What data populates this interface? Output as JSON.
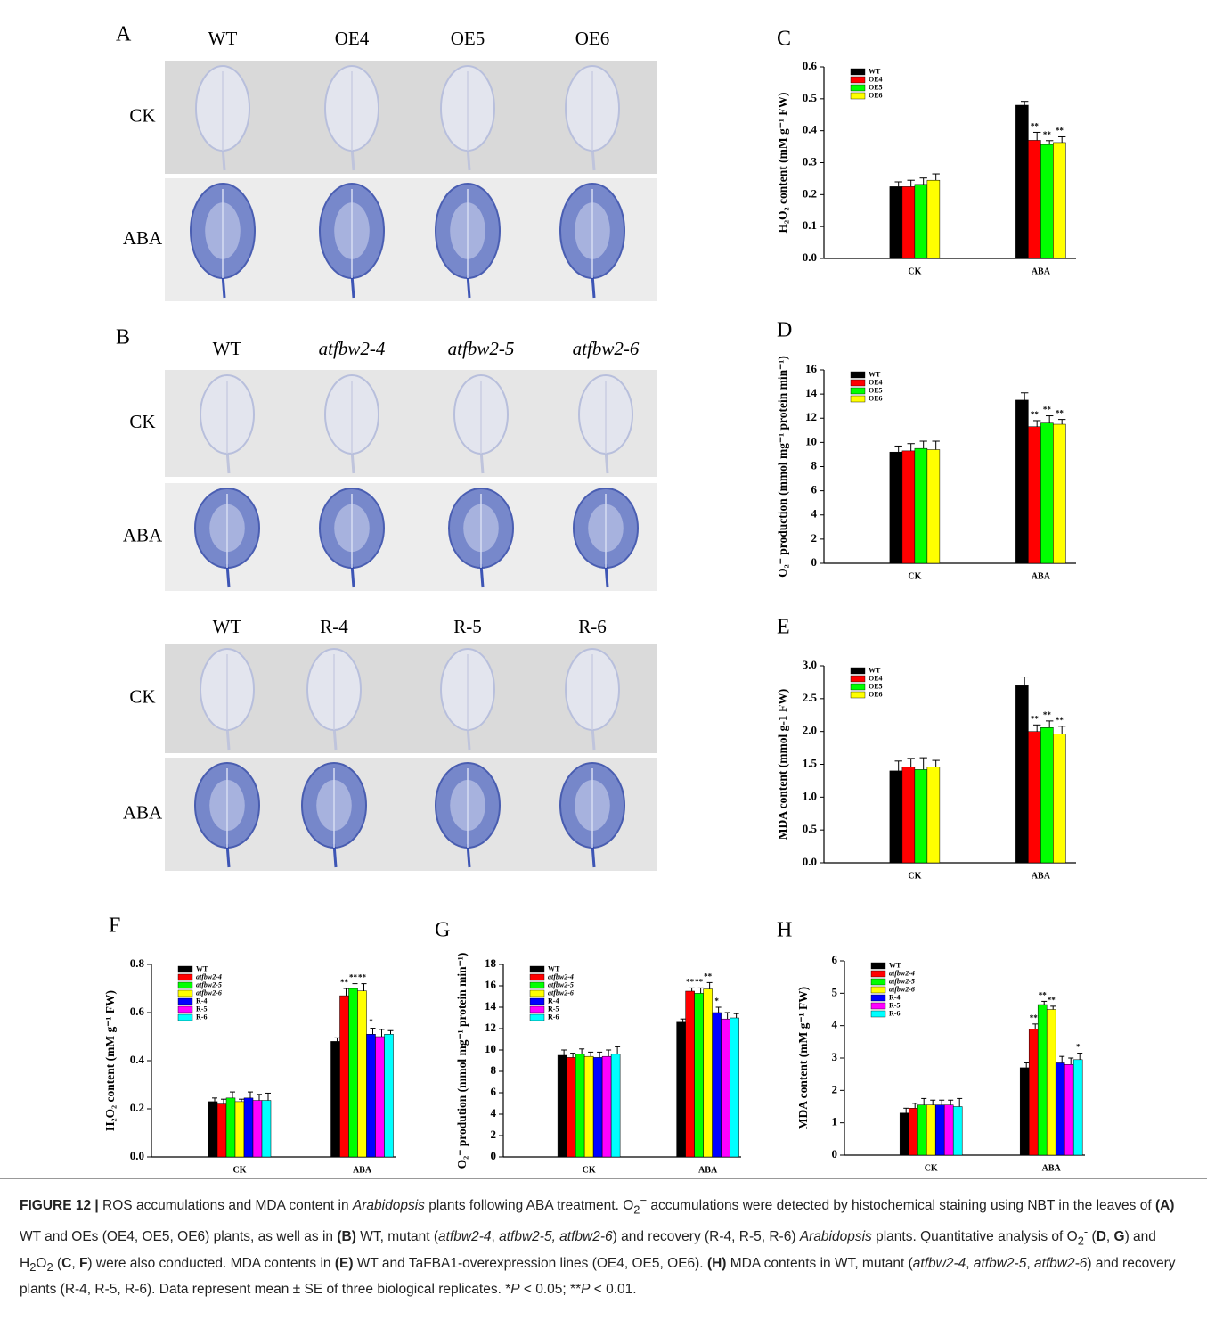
{
  "photo_panels": [
    {
      "label": "A",
      "columns": [
        "WT",
        "OE4",
        "OE5",
        "OE6"
      ],
      "rows": [
        "CK",
        "ABA"
      ]
    },
    {
      "label": "B",
      "columns": [
        "WT",
        "atfbw2-4",
        "atfbw2-5",
        "atfbw2-6"
      ],
      "rows": [
        "CK",
        "ABA"
      ]
    },
    {
      "columns": [
        "WT",
        "R-4",
        "R-5",
        "R-6"
      ],
      "rows": [
        "CK",
        "ABA"
      ]
    }
  ],
  "chart_data": [
    {
      "type": "bar",
      "panel_label": "C",
      "y_label": "H₂O₂ content (mM g⁻¹ FW)",
      "categories": [
        "CK",
        "ABA"
      ],
      "ylim": [
        0,
        0.6
      ],
      "yticks": [
        {
          "value": 0,
          "label": "0.0"
        },
        0.1,
        0.2,
        0.3,
        0.4,
        0.5,
        0.6
      ],
      "legend": "upper left",
      "series": [
        {
          "name": "WT",
          "color": "#000000",
          "values": [
            0.225,
            0.48
          ],
          "errors": [
            0.015,
            0.012
          ]
        },
        {
          "name": "OE4",
          "color": "#ff0000",
          "values": [
            0.225,
            0.37
          ],
          "errors": [
            0.02,
            0.025
          ],
          "significance": [
            null,
            "**"
          ]
        },
        {
          "name": "OE5",
          "color": "#00ff00",
          "values": [
            0.232,
            0.357
          ],
          "errors": [
            0.02,
            0.012
          ],
          "significance": [
            null,
            "**"
          ]
        },
        {
          "name": "OE6",
          "color": "#ffff00",
          "values": [
            0.245,
            0.363
          ],
          "errors": [
            0.02,
            0.018
          ],
          "significance": [
            null,
            "**"
          ]
        }
      ]
    },
    {
      "type": "bar",
      "panel_label": "D",
      "y_label": "O₂⁻ production (mmol mg⁻¹ protein min⁻¹)",
      "categories": [
        "CK",
        "ABA"
      ],
      "ylim": [
        0,
        16
      ],
      "yticks": [
        0,
        2,
        4,
        6,
        8,
        10,
        12,
        14,
        16
      ],
      "legend": "upper left",
      "series": [
        {
          "name": "WT",
          "color": "#000000",
          "values": [
            9.2,
            13.5
          ],
          "errors": [
            0.5,
            0.6
          ]
        },
        {
          "name": "OE4",
          "color": "#ff0000",
          "values": [
            9.3,
            11.3
          ],
          "errors": [
            0.6,
            0.5
          ],
          "significance": [
            null,
            "**"
          ]
        },
        {
          "name": "OE5",
          "color": "#00ff00",
          "values": [
            9.5,
            11.6
          ],
          "errors": [
            0.6,
            0.6
          ],
          "significance": [
            null,
            "**"
          ]
        },
        {
          "name": "OE6",
          "color": "#ffff00",
          "values": [
            9.4,
            11.5
          ],
          "errors": [
            0.7,
            0.4
          ],
          "significance": [
            null,
            "**"
          ]
        }
      ]
    },
    {
      "type": "bar",
      "panel_label": "E",
      "y_label": "MDA content (mmol g-1 FW)",
      "categories": [
        "CK",
        "ABA"
      ],
      "ylim": [
        0,
        3
      ],
      "yticks": [
        {
          "value": 0,
          "label": "0.0"
        },
        0.5,
        {
          "value": 1,
          "label": "1.0"
        },
        1.5,
        {
          "value": 2,
          "label": "2.0"
        },
        2.5,
        {
          "value": 3,
          "label": "3.0"
        }
      ],
      "legend": "upper left",
      "series": [
        {
          "name": "WT",
          "color": "#000000",
          "values": [
            1.4,
            2.7
          ],
          "errors": [
            0.15,
            0.13
          ]
        },
        {
          "name": "OE4",
          "color": "#ff0000",
          "values": [
            1.46,
            2.0
          ],
          "errors": [
            0.13,
            0.1
          ],
          "significance": [
            null,
            "**"
          ]
        },
        {
          "name": "OE5",
          "color": "#00ff00",
          "values": [
            1.42,
            2.06
          ],
          "errors": [
            0.18,
            0.1
          ],
          "significance": [
            null,
            "**"
          ]
        },
        {
          "name": "OE6",
          "color": "#ffff00",
          "values": [
            1.46,
            1.96
          ],
          "errors": [
            0.1,
            0.12
          ],
          "significance": [
            null,
            "**"
          ]
        }
      ]
    },
    {
      "type": "bar",
      "panel_label": "F",
      "y_label": "H₂O₂ content (mM g⁻¹ FW)",
      "categories": [
        "CK",
        "ABA"
      ],
      "ylim": [
        0,
        0.8
      ],
      "yticks": [
        {
          "value": 0,
          "label": "0.0"
        },
        0.2,
        0.4,
        0.6,
        0.8
      ],
      "legend": "upper left",
      "series": [
        {
          "name": "WT",
          "color": "#000000",
          "values": [
            0.23,
            0.48
          ],
          "errors": [
            0.015,
            0.015
          ]
        },
        {
          "name": "atfbw2-4",
          "color": "#ff0000",
          "values": [
            0.22,
            0.67
          ],
          "errors": [
            0.02,
            0.03
          ],
          "significance": [
            null,
            "**"
          ]
        },
        {
          "name": "atfbw2-5",
          "color": "#00ff00",
          "values": [
            0.245,
            0.7
          ],
          "errors": [
            0.025,
            0.02
          ],
          "significance": [
            null,
            "**"
          ]
        },
        {
          "name": "atfbw2-6",
          "color": "#ffff00",
          "values": [
            0.23,
            0.69
          ],
          "errors": [
            0.01,
            0.03
          ],
          "significance": [
            null,
            "**"
          ]
        },
        {
          "name": "R-4",
          "color": "#0000ff",
          "values": [
            0.245,
            0.51
          ],
          "errors": [
            0.025,
            0.025
          ],
          "significance": [
            null,
            "*"
          ]
        },
        {
          "name": "R-5",
          "color": "#ff00ff",
          "values": [
            0.235,
            0.5
          ],
          "errors": [
            0.025,
            0.03
          ]
        },
        {
          "name": "R-6",
          "color": "#00ffff",
          "values": [
            0.235,
            0.51
          ],
          "errors": [
            0.03,
            0.015
          ]
        }
      ]
    },
    {
      "type": "bar",
      "panel_label": "G",
      "y_label": "O₂⁻ prodution (mmol mg⁻¹ protein min⁻¹)",
      "categories": [
        "CK",
        "ABA"
      ],
      "ylim": [
        0,
        18
      ],
      "yticks": [
        0,
        2,
        4,
        6,
        8,
        10,
        12,
        14,
        16,
        18
      ],
      "legend": "upper left",
      "series": [
        {
          "name": "WT",
          "color": "#000000",
          "values": [
            9.5,
            12.6
          ],
          "errors": [
            0.5,
            0.3
          ]
        },
        {
          "name": "atfbw2-4",
          "color": "#ff0000",
          "values": [
            9.3,
            15.5
          ],
          "errors": [
            0.4,
            0.3
          ],
          "significance": [
            null,
            "**"
          ]
        },
        {
          "name": "atfbw2-5",
          "color": "#00ff00",
          "values": [
            9.6,
            15.3
          ],
          "errors": [
            0.5,
            0.5
          ],
          "significance": [
            null,
            "**"
          ]
        },
        {
          "name": "atfbw2-6",
          "color": "#ffff00",
          "values": [
            9.4,
            15.7
          ],
          "errors": [
            0.4,
            0.6
          ],
          "significance": [
            null,
            "**"
          ]
        },
        {
          "name": "R-4",
          "color": "#0000ff",
          "values": [
            9.3,
            13.5
          ],
          "errors": [
            0.5,
            0.5
          ],
          "significance": [
            null,
            "*"
          ]
        },
        {
          "name": "R-5",
          "color": "#ff00ff",
          "values": [
            9.4,
            12.9
          ],
          "errors": [
            0.6,
            0.6
          ]
        },
        {
          "name": "R-6",
          "color": "#00ffff",
          "values": [
            9.6,
            13.0
          ],
          "errors": [
            0.7,
            0.4
          ]
        }
      ]
    },
    {
      "type": "bar",
      "panel_label": "H",
      "y_label": "MDA content (mM g⁻¹ FW)",
      "categories": [
        "CK",
        "ABA"
      ],
      "ylim": [
        0,
        6
      ],
      "yticks": [
        0,
        1,
        2,
        3,
        4,
        5,
        6
      ],
      "legend": "upper left",
      "series": [
        {
          "name": "WT",
          "color": "#000000",
          "values": [
            1.3,
            2.7
          ],
          "errors": [
            0.15,
            0.15
          ]
        },
        {
          "name": "atfbw2-4",
          "color": "#ff0000",
          "values": [
            1.45,
            3.9
          ],
          "errors": [
            0.15,
            0.15
          ],
          "significance": [
            null,
            "**"
          ]
        },
        {
          "name": "atfbw2-5",
          "color": "#00ff00",
          "values": [
            1.55,
            4.65
          ],
          "errors": [
            0.2,
            0.1
          ],
          "significance": [
            null,
            "**"
          ]
        },
        {
          "name": "atfbw2-6",
          "color": "#ffff00",
          "values": [
            1.55,
            4.5
          ],
          "errors": [
            0.15,
            0.1
          ],
          "significance": [
            null,
            "**"
          ]
        },
        {
          "name": "R-4",
          "color": "#0000ff",
          "values": [
            1.55,
            2.85
          ],
          "errors": [
            0.15,
            0.2
          ]
        },
        {
          "name": "R-5",
          "color": "#ff00ff",
          "values": [
            1.55,
            2.8
          ],
          "errors": [
            0.15,
            0.2
          ]
        },
        {
          "name": "R-6",
          "color": "#00ffff",
          "values": [
            1.5,
            2.95
          ],
          "errors": [
            0.25,
            0.2
          ],
          "significance": [
            null,
            "*"
          ]
        }
      ]
    }
  ],
  "caption": [
    "FIGURE 12 |",
    " ROS accumulations and MDA content in ",
    "Arabidopsis",
    " plants following ABA treatment. O",
    "2",
    "−",
    " accumulations were detected by histochemical staining using NBT in the leaves of ",
    "(A)",
    " WT and OEs (OE4, OE5, OE6) plants, as well as in ",
    "(B)",
    " WT, mutant (",
    "atfbw2-4",
    ", ",
    "atfbw2-5, atfbw2-6",
    ") and recovery (R-4, R-5, R-6) ",
    "Arabidopsis",
    " plants. Quantitative analysis of O",
    "2",
    "-",
    " (",
    "D",
    ", ",
    "G",
    ") and H",
    "2",
    "O",
    "2",
    " (",
    "C",
    ", ",
    "F",
    ") were also conducted. MDA contents in ",
    "(E)",
    " WT and TaFBA1-overexpression lines (OE4, OE5, OE6). ",
    "(H)",
    " MDA contents in WT, mutant (",
    "atfbw2-4",
    ", ",
    "atfbw2-5",
    ", ",
    "atfbw2-6",
    ") and recovery plants (R-4, R-5, R-6). Data represent mean ± SE of three biological replicates. *",
    "P",
    " < 0.05; **",
    "P",
    " < 0.01."
  ]
}
